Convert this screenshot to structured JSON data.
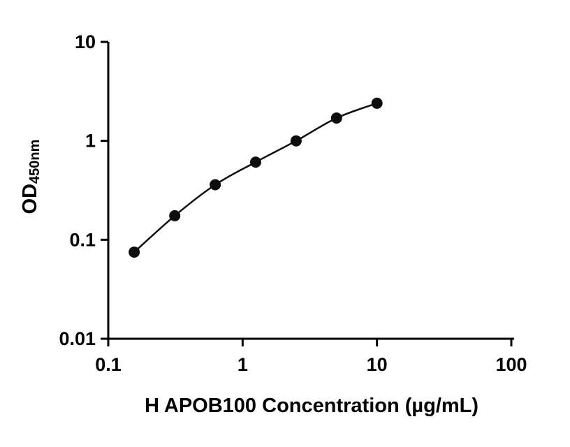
{
  "chart_data": {
    "type": "scatter",
    "title": "",
    "xlabel": "H APOB100 Concentration (µg/mL)",
    "ylabel_main": "OD",
    "ylabel_sub": "450nm",
    "x_scale": "log",
    "y_scale": "log",
    "xlim": [
      0.1,
      100
    ],
    "ylim": [
      0.01,
      10
    ],
    "x_ticks": [
      "0.1",
      "1",
      "10",
      "100"
    ],
    "y_ticks": [
      "0.01",
      "0.1",
      "1",
      "10"
    ],
    "x": [
      0.156,
      0.3125,
      0.625,
      1.25,
      2.5,
      5,
      10
    ],
    "y": [
      0.075,
      0.175,
      0.36,
      0.61,
      1.0,
      1.7,
      2.4
    ],
    "grid": false,
    "legend": "none",
    "marker_color": "#0d0d0d",
    "line_color": "#0d0d0d",
    "background_color": "#ffffff"
  }
}
